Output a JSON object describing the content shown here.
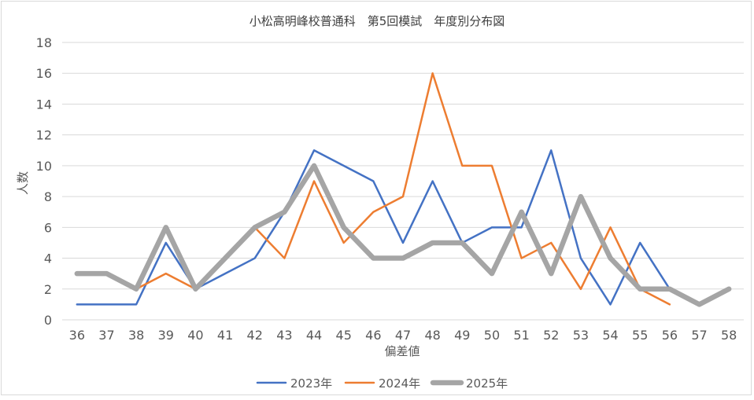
{
  "chart_data": {
    "type": "line",
    "title": "小松高明峰校普通科　第5回模試　年度別分布図",
    "xlabel": "偏差値",
    "ylabel": "人数",
    "ylim": [
      0,
      18
    ],
    "yticks": [
      0,
      2,
      4,
      6,
      8,
      10,
      12,
      14,
      16,
      18
    ],
    "categories": [
      "36",
      "37",
      "38",
      "39",
      "40",
      "41",
      "42",
      "43",
      "44",
      "45",
      "46",
      "47",
      "48",
      "49",
      "50",
      "51",
      "52",
      "53",
      "54",
      "55",
      "56",
      "57",
      "58"
    ],
    "grid": "horizontal",
    "legend_position": "bottom",
    "series": [
      {
        "name": "2023年",
        "color": "#4472c4",
        "width": "thin",
        "values": [
          1,
          1,
          1,
          5,
          2,
          3,
          4,
          7,
          11,
          10,
          9,
          5,
          9,
          5,
          6,
          6,
          11,
          4,
          1,
          5,
          2,
          null,
          null
        ]
      },
      {
        "name": "2024年",
        "color": "#ed7d31",
        "width": "thin",
        "values": [
          null,
          null,
          2,
          3,
          2,
          null,
          6,
          4,
          9,
          5,
          7,
          8,
          16,
          10,
          10,
          4,
          5,
          2,
          6,
          2,
          1,
          null,
          null
        ]
      },
      {
        "name": "2025年",
        "color": "#a5a5a5",
        "width": "thick",
        "values": [
          3,
          3,
          2,
          6,
          2,
          4,
          6,
          7,
          10,
          6,
          4,
          4,
          5,
          5,
          3,
          7,
          3,
          8,
          4,
          2,
          2,
          1,
          2
        ]
      }
    ]
  }
}
